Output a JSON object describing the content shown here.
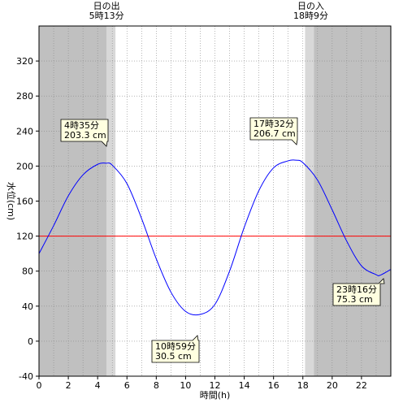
{
  "chart_data": {
    "type": "line",
    "xlabel": "時間(h)",
    "ylabel": "水位(cm)",
    "xlim": [
      0,
      24
    ],
    "ylim": [
      -40,
      360
    ],
    "x_ticks": [
      0,
      2,
      4,
      6,
      8,
      10,
      12,
      14,
      16,
      18,
      20,
      22
    ],
    "y_ticks": [
      -40,
      0,
      40,
      80,
      120,
      160,
      200,
      240,
      280,
      320
    ],
    "reference_line": {
      "value": 120,
      "color": "#ff0000"
    },
    "night_color": "#c0c0c0",
    "twilight_color": "#d8d8d8",
    "line_color": "#0000ff",
    "sunrise": {
      "title": "日の出",
      "time_label": "5時13分",
      "hour": 5.217
    },
    "sunset": {
      "title": "日の入",
      "time_label": "18時9分",
      "hour": 18.15
    },
    "series": [
      {
        "values_xy": [
          [
            0,
            100
          ],
          [
            1,
            132
          ],
          [
            2,
            166
          ],
          [
            3,
            190
          ],
          [
            4,
            202
          ],
          [
            4.583,
            203.3
          ],
          [
            5,
            201
          ],
          [
            6,
            180
          ],
          [
            7,
            140
          ],
          [
            8,
            94
          ],
          [
            9,
            56
          ],
          [
            10,
            34
          ],
          [
            10.983,
            30.5
          ],
          [
            12,
            42
          ],
          [
            13,
            80
          ],
          [
            14,
            130
          ],
          [
            15,
            172
          ],
          [
            16,
            198
          ],
          [
            17,
            206
          ],
          [
            17.533,
            206.7
          ],
          [
            18,
            204
          ],
          [
            19,
            184
          ],
          [
            20,
            150
          ],
          [
            21,
            114
          ],
          [
            22,
            86
          ],
          [
            23,
            76
          ],
          [
            23.267,
            75.3
          ],
          [
            24,
            82
          ]
        ]
      }
    ],
    "annotations": [
      {
        "line1": "4時35分",
        "line2": "203.3 cm",
        "x": 4.583,
        "y": 203.3
      },
      {
        "line1": "10時59分",
        "line2": "30.5 cm",
        "x": 10.983,
        "y": 30.5
      },
      {
        "line1": "17時32分",
        "line2": "206.7 cm",
        "x": 17.533,
        "y": 206.7
      },
      {
        "line1": "23時16分",
        "line2": "75.3 cm",
        "x": 23.267,
        "y": 75.3
      }
    ]
  }
}
